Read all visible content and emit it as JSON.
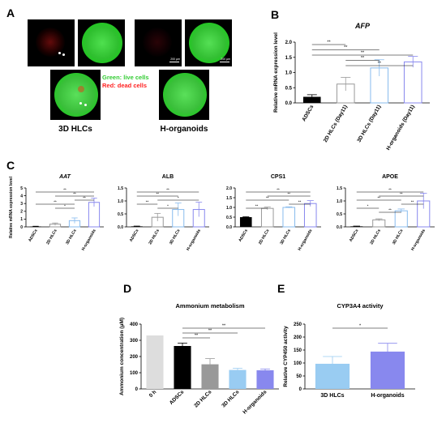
{
  "panel_letters": [
    "A",
    "B",
    "C",
    "D",
    "E"
  ],
  "panel_a": {
    "scale_label": "200 µm",
    "legend_green": "Green: live cells",
    "legend_red": "Red: dead cells",
    "label_left": "3D HLCs",
    "label_right": "H-organoids"
  },
  "chart_data": [
    {
      "id": "B",
      "type": "bar",
      "title": "AFP",
      "title_italic": true,
      "ylabel": "Relative mRNA expression level",
      "xlabel": "",
      "categories": [
        "ADSCs",
        "2D HLCs (Day11)",
        "3D HLCs (Day11)",
        "H-organoids (Day11)"
      ],
      "values": [
        0.2,
        0.62,
        1.15,
        1.35
      ],
      "errors": [
        0.07,
        0.22,
        0.27,
        0.18
      ],
      "colors": [
        "#000000",
        "#999999",
        "#88bbee",
        "#8888ee"
      ],
      "ylim": [
        0,
        2.0
      ],
      "yticks": [
        "0.0",
        "0.5",
        "1.0",
        "1.5",
        "2.0"
      ],
      "sig": [
        [
          "0",
          "1",
          "**"
        ],
        [
          "0",
          "2",
          "**"
        ],
        [
          "0",
          "3",
          "**"
        ],
        [
          "1",
          "2",
          "**"
        ],
        [
          "1",
          "3",
          "**"
        ]
      ],
      "grid": false
    },
    {
      "id": "C1",
      "type": "bar",
      "title": "AAT",
      "title_italic": true,
      "ylabel": "Relative mRNA expression level",
      "xlabel": "",
      "categories": [
        "ADSCs",
        "2D HLCs",
        "3D HLCs",
        "H-organoids"
      ],
      "values": [
        0.05,
        0.35,
        0.8,
        3.15
      ],
      "errors": [
        0.03,
        0.15,
        0.35,
        0.55
      ],
      "colors": [
        "#000000",
        "#999999",
        "#88bbee",
        "#8888ee"
      ],
      "ylim": [
        0,
        5
      ],
      "yticks": [
        "0",
        "1",
        "2",
        "3",
        "4",
        "5"
      ],
      "sig": [
        [
          "0",
          "3",
          "**"
        ],
        [
          "1",
          "3",
          "**"
        ],
        [
          "2",
          "3",
          "**"
        ],
        [
          "0",
          "2",
          "**"
        ],
        [
          "1",
          "2",
          "*"
        ]
      ],
      "grid": false
    },
    {
      "id": "C2",
      "type": "bar",
      "title": "ALB",
      "title_italic": false,
      "ylabel": "",
      "xlabel": "",
      "categories": [
        "ADSCs",
        "2D HLCs",
        "3D HLCs",
        "H-organoids"
      ],
      "values": [
        0.02,
        0.37,
        0.67,
        0.67
      ],
      "errors": [
        0.01,
        0.15,
        0.25,
        0.28
      ],
      "colors": [
        "#000000",
        "#999999",
        "#88bbee",
        "#8888ee"
      ],
      "ylim": [
        0,
        1.5
      ],
      "yticks": [
        "0.0",
        "0.5",
        "1.0",
        "1.5"
      ],
      "sig": [
        [
          "0",
          "3",
          "**"
        ],
        [
          "0",
          "2",
          "**"
        ],
        [
          "1",
          "3",
          "*"
        ],
        [
          "0",
          "1",
          "**"
        ],
        [
          "1",
          "2",
          "*"
        ]
      ],
      "grid": false
    },
    {
      "id": "C3",
      "type": "bar",
      "title": "CPS1",
      "title_italic": false,
      "ylabel": "",
      "xlabel": "",
      "categories": [
        "ADSCs",
        "2D HLCs",
        "3D HLCs",
        "H-organoids"
      ],
      "values": [
        0.5,
        0.95,
        1.0,
        1.2
      ],
      "errors": [
        0.02,
        0.07,
        0.03,
        0.15
      ],
      "colors": [
        "#000000",
        "#999999",
        "#88bbee",
        "#8888ee"
      ],
      "ylim": [
        0,
        2.0
      ],
      "yticks": [
        "0.0",
        "0.5",
        "1.0",
        "1.5",
        "2.0"
      ],
      "sig": [
        [
          "0",
          "3",
          "**"
        ],
        [
          "1",
          "3",
          "**"
        ],
        [
          "0",
          "2",
          "**"
        ],
        [
          "2",
          "3",
          "**"
        ],
        [
          "0",
          "1",
          "**"
        ]
      ],
      "grid": false
    },
    {
      "id": "C4",
      "type": "bar",
      "title": "APOE",
      "title_italic": false,
      "ylabel": "",
      "xlabel": "",
      "categories": [
        "ADSCs",
        "2D HLCs",
        "3D HLCs",
        "H-organoids"
      ],
      "values": [
        0.02,
        0.27,
        0.62,
        1.0
      ],
      "errors": [
        0.01,
        0.04,
        0.07,
        0.3
      ],
      "colors": [
        "#000000",
        "#999999",
        "#88bbee",
        "#8888ee"
      ],
      "ylim": [
        0,
        1.5
      ],
      "yticks": [
        "0.0",
        "0.5",
        "1.0",
        "1.5"
      ],
      "sig": [
        [
          "0",
          "3",
          "**"
        ],
        [
          "1",
          "3",
          "**"
        ],
        [
          "0",
          "2",
          "**"
        ],
        [
          "2",
          "3",
          "**"
        ],
        [
          "0",
          "1",
          "*"
        ],
        [
          "1",
          "2",
          "**"
        ]
      ],
      "grid": false
    },
    {
      "id": "D",
      "type": "bar",
      "title": "Ammonium metabolism",
      "title_italic": false,
      "ylabel": "Ammonium concentration (μM)",
      "xlabel": "",
      "categories": [
        "0 h",
        "ADSCs",
        "2D HLCs",
        "3D HLCs",
        "H-organoids"
      ],
      "values": [
        330,
        265,
        152,
        117,
        115
      ],
      "errors": [
        0,
        18,
        35,
        10,
        8
      ],
      "colors": [
        "#dddddd",
        "#000000",
        "#999999",
        "#99ccf2",
        "#8888ee"
      ],
      "fill_mode": "solid",
      "ylim": [
        0,
        400
      ],
      "yticks": [
        "0",
        "100",
        "200",
        "300",
        "400"
      ],
      "sig": [
        [
          "1",
          "4",
          "**"
        ],
        [
          "1",
          "3",
          "**"
        ],
        [
          "1",
          "2",
          "**"
        ]
      ],
      "grid": false
    },
    {
      "id": "E",
      "type": "bar",
      "title": "CYP3A4 activity",
      "title_italic": false,
      "ylabel": "Relative CYP450 activity",
      "xlabel": "",
      "categories": [
        "3D HLCs",
        "H-organoids"
      ],
      "values": [
        97,
        144
      ],
      "errors": [
        28,
        32
      ],
      "colors": [
        "#99ccf2",
        "#8888ee"
      ],
      "fill_mode": "solid",
      "ylim": [
        0,
        250
      ],
      "yticks": [
        "0",
        "50",
        "100",
        "150",
        "200",
        "250"
      ],
      "sig": [
        [
          "0",
          "1",
          "*"
        ]
      ],
      "grid": false
    }
  ]
}
